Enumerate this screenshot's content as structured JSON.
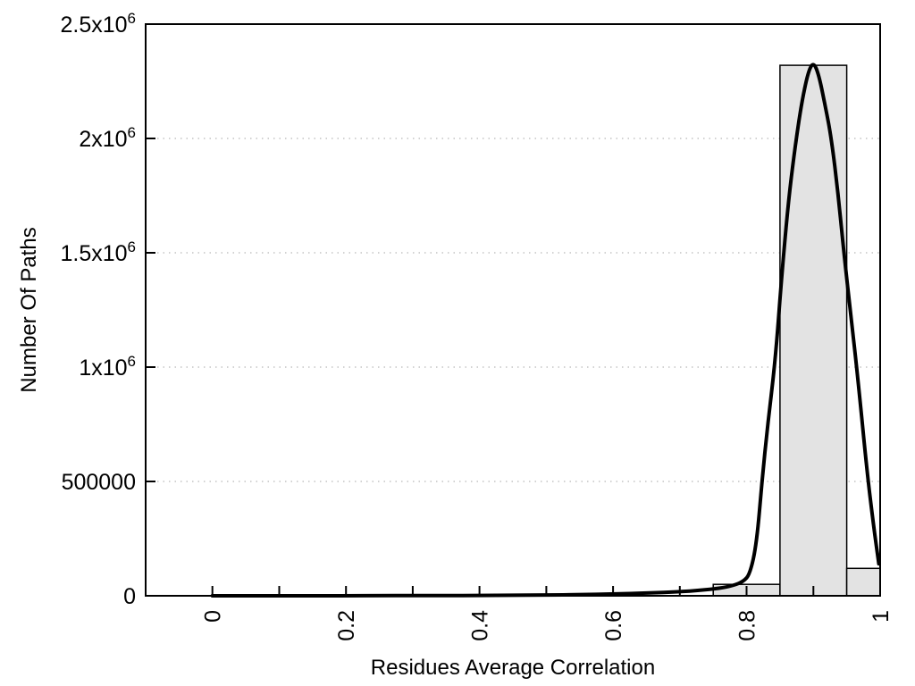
{
  "chart_data": {
    "type": "bar",
    "subtype": "histogram-with-fit-curve",
    "title": "",
    "xlabel": "Residues Average Correlation",
    "ylabel": "Number Of Paths",
    "xlim": [
      -0.1,
      1.0
    ],
    "ylim": [
      0,
      2500000
    ],
    "legend": "none",
    "grid": {
      "horizontal": true,
      "vertical": false,
      "style": "dotted",
      "color": "#b8b8b8"
    },
    "bars": [
      {
        "x0": 0.75,
        "x1": 0.85,
        "value": 50000
      },
      {
        "x0": 0.85,
        "x1": 0.95,
        "value": 2320000
      },
      {
        "x0": 0.95,
        "x1": 1.0,
        "value": 120000
      }
    ],
    "curve": {
      "name": "fit-curve",
      "points": [
        [
          0.0,
          0
        ],
        [
          0.05,
          0
        ],
        [
          0.1,
          0
        ],
        [
          0.15,
          0
        ],
        [
          0.2,
          200
        ],
        [
          0.25,
          400
        ],
        [
          0.3,
          600
        ],
        [
          0.35,
          900
        ],
        [
          0.4,
          1400
        ],
        [
          0.45,
          2200
        ],
        [
          0.5,
          3200
        ],
        [
          0.55,
          5000
        ],
        [
          0.6,
          8000
        ],
        [
          0.65,
          12000
        ],
        [
          0.7,
          18000
        ],
        [
          0.73,
          24000
        ],
        [
          0.76,
          33000
        ],
        [
          0.78,
          45000
        ],
        [
          0.795,
          62000
        ],
        [
          0.805,
          95000
        ],
        [
          0.815,
          230000
        ],
        [
          0.823,
          500000
        ],
        [
          0.832,
          760000
        ],
        [
          0.843,
          1030000
        ],
        [
          0.852,
          1380000
        ],
        [
          0.862,
          1710000
        ],
        [
          0.872,
          1950000
        ],
        [
          0.882,
          2150000
        ],
        [
          0.892,
          2290000
        ],
        [
          0.9,
          2335000
        ],
        [
          0.908,
          2280000
        ],
        [
          0.918,
          2140000
        ],
        [
          0.927,
          2000000
        ],
        [
          0.937,
          1760000
        ],
        [
          0.945,
          1520000
        ],
        [
          0.955,
          1250000
        ],
        [
          0.965,
          1000000
        ],
        [
          0.98,
          550000
        ],
        [
          0.99,
          310000
        ],
        [
          0.998,
          140000
        ]
      ]
    },
    "x_ticks": [
      {
        "v": 0.0,
        "label": "0"
      },
      {
        "v": 0.1,
        "label": ""
      },
      {
        "v": 0.2,
        "label": "0.2"
      },
      {
        "v": 0.3,
        "label": ""
      },
      {
        "v": 0.4,
        "label": "0.4"
      },
      {
        "v": 0.5,
        "label": ""
      },
      {
        "v": 0.6,
        "label": "0.6"
      },
      {
        "v": 0.7,
        "label": ""
      },
      {
        "v": 0.8,
        "label": "0.8"
      },
      {
        "v": 0.9,
        "label": ""
      },
      {
        "v": 1.0,
        "label": "1"
      }
    ],
    "y_ticks": [
      {
        "v": 0,
        "base": "0",
        "sup": ""
      },
      {
        "v": 500000,
        "base": "500000",
        "sup": ""
      },
      {
        "v": 1000000,
        "base": "1x10",
        "sup": "6"
      },
      {
        "v": 1500000,
        "base": "1.5x10",
        "sup": "6"
      },
      {
        "v": 2000000,
        "base": "2x10",
        "sup": "6"
      },
      {
        "v": 2500000,
        "base": "2.5x10",
        "sup": "6"
      }
    ],
    "colors": {
      "background": "#ffffff",
      "bar_fill": "#e3e3e3",
      "bar_stroke": "#000000",
      "curve": "#000000",
      "axis": "#000000",
      "grid": "#b8b8b8",
      "text": "#000000"
    }
  }
}
